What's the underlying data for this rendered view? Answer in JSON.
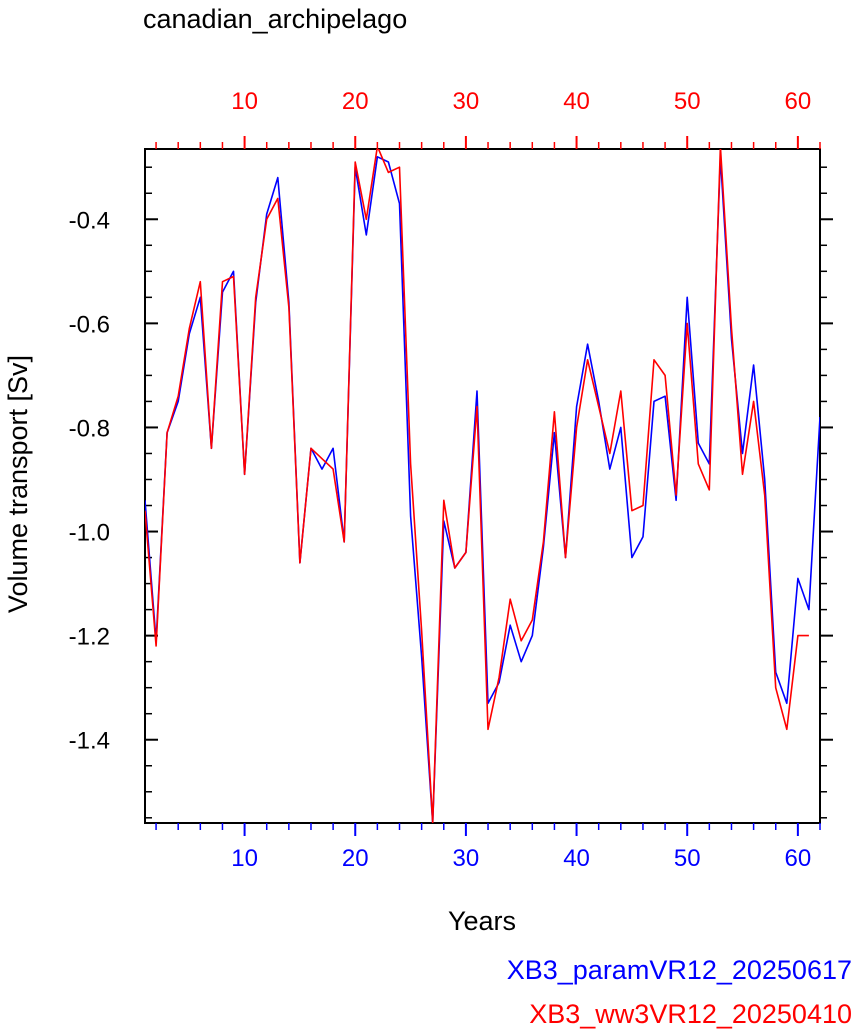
{
  "chart_data": {
    "type": "line",
    "title": "canadian_archipelago",
    "xlabel": "Years",
    "ylabel": "Volume transport [Sv]",
    "xlim": [
      1,
      62
    ],
    "ylim": [
      -1.56,
      -0.265
    ],
    "xticks": [
      10,
      20,
      30,
      40,
      50,
      60
    ],
    "yticks": [
      -1.4,
      -1.2,
      -1.0,
      -0.8,
      -0.6,
      -0.4
    ],
    "ytick_labels": [
      "-1.4",
      "-1.2",
      "-1.0",
      "-0.8",
      "-0.6",
      "-0.4"
    ],
    "grid": false,
    "legend_position": "bottom-right",
    "series": [
      {
        "name": "XB3_paramVR12_20250617",
        "color": "#0000ff",
        "x": [
          1,
          2,
          3,
          4,
          5,
          6,
          7,
          8,
          9,
          10,
          11,
          12,
          13,
          14,
          15,
          16,
          17,
          18,
          19,
          20,
          21,
          22,
          23,
          24,
          25,
          26,
          27,
          28,
          29,
          30,
          31,
          32,
          33,
          34,
          35,
          36,
          37,
          38,
          39,
          40,
          41,
          42,
          43,
          44,
          45,
          46,
          47,
          48,
          49,
          50,
          51,
          52,
          53,
          54,
          55,
          56,
          57,
          58,
          59,
          60,
          61,
          62
        ],
        "values": [
          -0.94,
          -1.21,
          -0.81,
          -0.75,
          -0.62,
          -0.55,
          -0.84,
          -0.54,
          -0.5,
          -0.89,
          -0.56,
          -0.39,
          -0.32,
          -0.56,
          -1.06,
          -0.84,
          -0.88,
          -0.84,
          -1.02,
          -0.3,
          -0.43,
          -0.28,
          -0.29,
          -0.37,
          -0.97,
          -1.24,
          -1.56,
          -0.98,
          -1.07,
          -1.04,
          -0.73,
          -1.33,
          -1.29,
          -1.18,
          -1.25,
          -1.2,
          -1.03,
          -0.81,
          -1.05,
          -0.76,
          -0.64,
          -0.75,
          -0.88,
          -0.8,
          -1.05,
          -1.01,
          -0.75,
          -0.74,
          -0.94,
          -0.55,
          -0.83,
          -0.87,
          -0.28,
          -0.63,
          -0.85,
          -0.68,
          -0.9,
          -1.27,
          -1.33,
          -1.09,
          -1.15,
          -0.78
        ]
      },
      {
        "name": "XB3_ww3VR12_20250410",
        "color": "#ff0000",
        "x": [
          1,
          2,
          3,
          4,
          5,
          6,
          7,
          8,
          9,
          10,
          11,
          12,
          13,
          14,
          15,
          16,
          17,
          18,
          19,
          20,
          21,
          22,
          23,
          24,
          25,
          26,
          27,
          28,
          29,
          30,
          31,
          32,
          33,
          34,
          35,
          36,
          37,
          38,
          39,
          40,
          41,
          42,
          43,
          44,
          45,
          46,
          47,
          48,
          49,
          50,
          51,
          52,
          53,
          54,
          55,
          56,
          57,
          58,
          59,
          60,
          61
        ],
        "values": [
          -0.96,
          -1.22,
          -0.81,
          -0.74,
          -0.61,
          -0.52,
          -0.84,
          -0.52,
          -0.51,
          -0.89,
          -0.55,
          -0.4,
          -0.36,
          -0.57,
          -1.06,
          -0.84,
          -0.86,
          -0.88,
          -1.02,
          -0.29,
          -0.4,
          -0.26,
          -0.31,
          -0.3,
          -0.87,
          -1.19,
          -1.56,
          -0.94,
          -1.07,
          -1.04,
          -0.76,
          -1.38,
          -1.28,
          -1.13,
          -1.21,
          -1.17,
          -1.02,
          -0.77,
          -1.05,
          -0.8,
          -0.67,
          -0.76,
          -0.85,
          -0.73,
          -0.96,
          -0.95,
          -0.67,
          -0.7,
          -0.93,
          -0.6,
          -0.87,
          -0.92,
          -0.26,
          -0.61,
          -0.89,
          -0.75,
          -0.93,
          -1.3,
          -1.38,
          -1.2,
          -1.2
        ]
      }
    ]
  }
}
